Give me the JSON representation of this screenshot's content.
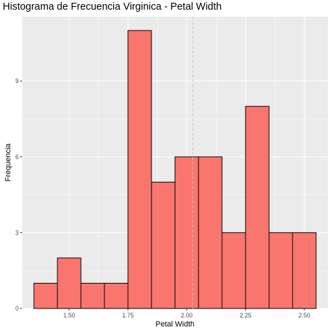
{
  "chart_data": {
    "type": "bar",
    "title": "Histograma de Frecuencia Virginica - Petal Width",
    "xlabel": "Petal Width",
    "ylabel": "Frequencia",
    "bins": [
      {
        "start": 1.35,
        "end": 1.45,
        "count": 1
      },
      {
        "start": 1.45,
        "end": 1.55,
        "count": 2
      },
      {
        "start": 1.55,
        "end": 1.65,
        "count": 1
      },
      {
        "start": 1.65,
        "end": 1.75,
        "count": 1
      },
      {
        "start": 1.75,
        "end": 1.85,
        "count": 11
      },
      {
        "start": 1.85,
        "end": 1.95,
        "count": 5
      },
      {
        "start": 1.95,
        "end": 2.05,
        "count": 6
      },
      {
        "start": 2.05,
        "end": 2.15,
        "count": 6
      },
      {
        "start": 2.15,
        "end": 2.25,
        "count": 3
      },
      {
        "start": 2.25,
        "end": 2.35,
        "count": 8
      },
      {
        "start": 2.35,
        "end": 2.45,
        "count": 3
      },
      {
        "start": 2.45,
        "end": 2.55,
        "count": 3
      }
    ],
    "mean_line": 2.026,
    "xlim": [
      1.3,
      2.6
    ],
    "ylim": [
      0,
      11.55
    ],
    "x_ticks": [
      {
        "value": 1.5,
        "label": "1.50"
      },
      {
        "value": 1.75,
        "label": "1.75"
      },
      {
        "value": 2.0,
        "label": "2.00"
      },
      {
        "value": 2.25,
        "label": "2.25"
      },
      {
        "value": 2.5,
        "label": "2.50"
      }
    ],
    "y_ticks": [
      {
        "value": 0,
        "label": "0"
      },
      {
        "value": 3,
        "label": "3"
      },
      {
        "value": 6,
        "label": "6"
      },
      {
        "value": 9,
        "label": "9"
      }
    ],
    "grid": true,
    "colors": {
      "bar_fill": "#f8766d",
      "bar_stroke": "#000000",
      "panel_bg": "#ebebeb",
      "grid_major": "#ffffff",
      "mean_line": "#c8c8c8"
    }
  }
}
